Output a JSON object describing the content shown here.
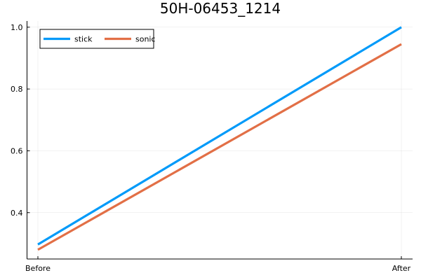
{
  "chart_data": {
    "type": "line",
    "title": "50H-06453_1214",
    "xlabel": "",
    "ylabel": "",
    "categories": [
      "Before",
      "After"
    ],
    "ylim": [
      0.25,
      1.02
    ],
    "yticks": [
      0.4,
      0.6,
      0.8,
      1.0
    ],
    "ytick_labels": [
      "0.4",
      "0.6",
      "0.8",
      "1.0"
    ],
    "grid": true,
    "legend_position": "top-left",
    "series": [
      {
        "name": "stick",
        "color": "#009af9",
        "values": [
          0.297,
          1.0
        ]
      },
      {
        "name": "sonic",
        "color": "#e26f46",
        "values": [
          0.28,
          0.945
        ]
      }
    ]
  }
}
